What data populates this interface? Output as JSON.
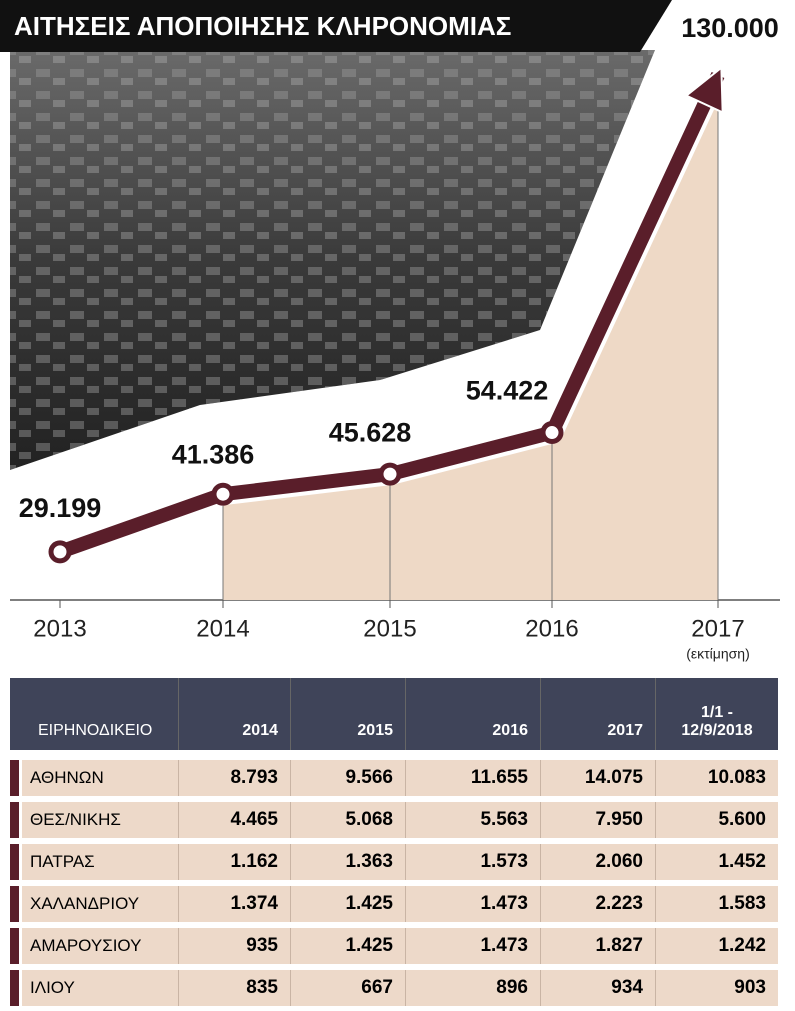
{
  "chart_data": {
    "type": "line",
    "title": "ΑΙΤΗΣΕΙΣ ΑΠΟΠΟΙΗΣΗΣ ΚΛΗΡΟΝΟΜΙΑΣ",
    "categories": [
      "2013",
      "2014",
      "2015",
      "2016",
      "2017"
    ],
    "values": [
      29199,
      41386,
      45628,
      54422,
      130000
    ],
    "value_labels": [
      "29.199",
      "41.386",
      "45.628",
      "54.422",
      "130.000"
    ],
    "annotation": "(εκτίμηση)",
    "color": "#5a1e2a",
    "area_color": "#eed9c6"
  },
  "table": {
    "header": [
      "ΕΙΡΗΝΟΔΙΚΕΙΟ",
      "2014",
      "2015",
      "2016",
      "2017",
      "1/1 - 12/9/2018"
    ],
    "rows": [
      [
        "ΑΘΗΝΩΝ",
        "8.793",
        "9.566",
        "11.655",
        "14.075",
        "10.083"
      ],
      [
        "ΘΕΣ/ΝΙΚΗΣ",
        "4.465",
        "5.068",
        "5.563",
        "7.950",
        "5.600"
      ],
      [
        "ΠΑΤΡΑΣ",
        "1.162",
        "1.363",
        "1.573",
        "2.060",
        "1.452"
      ],
      [
        "ΧΑΛΑΝΔΡΙΟΥ",
        "1.374",
        "1.425",
        "1.473",
        "2.223",
        "1.583"
      ],
      [
        "ΑΜΑΡΟΥΣΙΟΥ",
        "935",
        "1.425",
        "1.473",
        "1.827",
        "1.242"
      ],
      [
        "ΙΛΙΟΥ",
        "835",
        "667",
        "896",
        "934",
        "903"
      ]
    ]
  }
}
